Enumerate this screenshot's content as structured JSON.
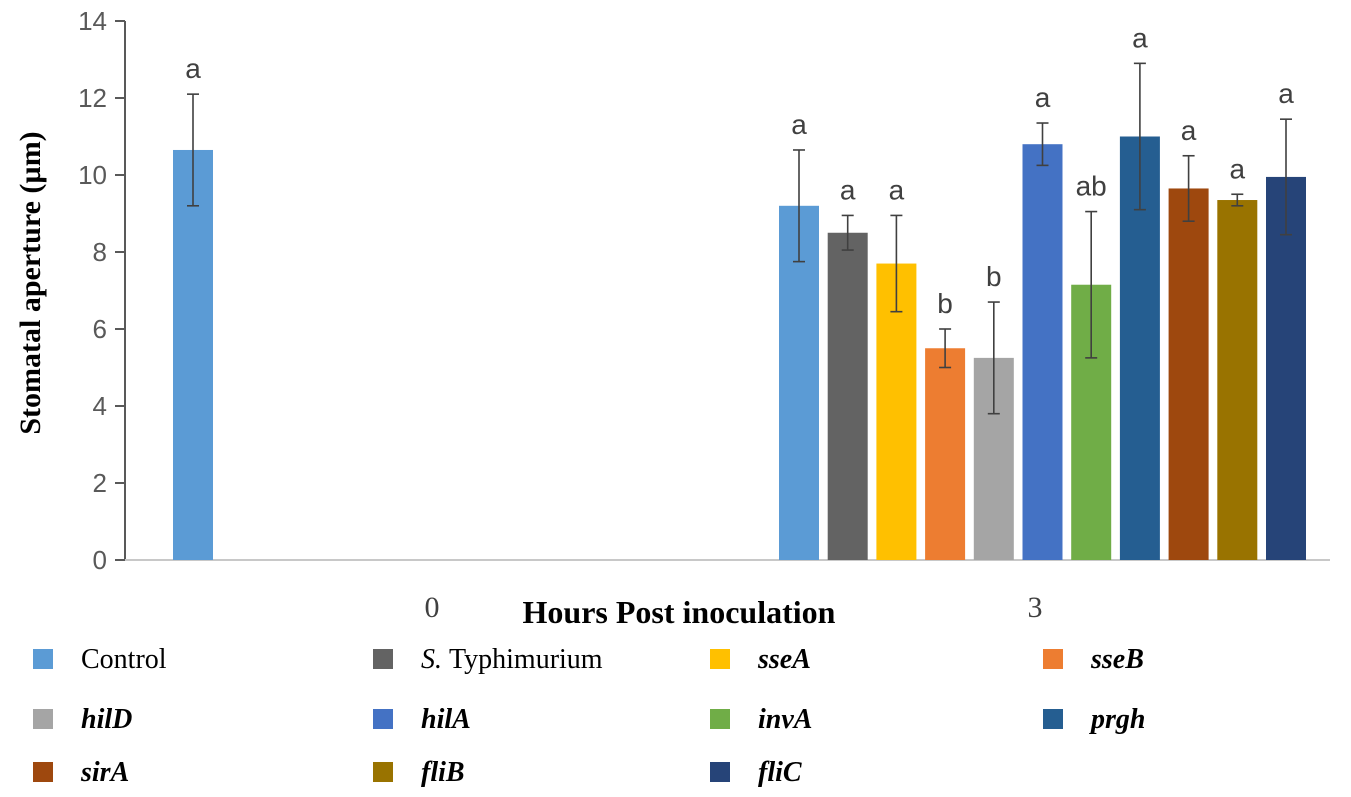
{
  "chart_data": {
    "type": "bar",
    "ylabel": "Stomatal aperture (µm)",
    "xlabel": "Hours Post inoculation",
    "ylim": [
      0,
      14
    ],
    "yticks": [
      0,
      2,
      4,
      6,
      8,
      10,
      12,
      14
    ],
    "categories": [
      "0",
      "3"
    ],
    "series": [
      {
        "name": "Control",
        "prefix": "",
        "italic": false,
        "color": "#5b9bd5",
        "values": [
          10.65,
          9.2
        ],
        "errors": [
          1.45,
          1.45
        ],
        "sig": [
          "a",
          "a"
        ]
      },
      {
        "name": "Typhimurium",
        "prefix": "S.",
        "italic": false,
        "color": "#636363",
        "values": [
          null,
          8.5
        ],
        "errors": [
          null,
          0.45
        ],
        "sig": [
          null,
          "a"
        ]
      },
      {
        "name": "sseA",
        "prefix": "",
        "italic": true,
        "color": "#ffc000",
        "values": [
          null,
          7.7
        ],
        "errors": [
          null,
          1.25
        ],
        "sig": [
          null,
          "a"
        ]
      },
      {
        "name": "sseB",
        "prefix": "",
        "italic": true,
        "color": "#ed7d31",
        "values": [
          null,
          5.5
        ],
        "errors": [
          null,
          0.5
        ],
        "sig": [
          null,
          "b"
        ]
      },
      {
        "name": "hilD",
        "prefix": "",
        "italic": true,
        "color": "#a5a5a5",
        "values": [
          null,
          5.25
        ],
        "errors": [
          null,
          1.45
        ],
        "sig": [
          null,
          "b"
        ]
      },
      {
        "name": "hilA",
        "prefix": "",
        "italic": true,
        "color": "#4472c4",
        "values": [
          null,
          10.8
        ],
        "errors": [
          null,
          0.55
        ],
        "sig": [
          null,
          "a"
        ]
      },
      {
        "name": "invA",
        "prefix": "",
        "italic": true,
        "color": "#70ad47",
        "values": [
          null,
          7.15
        ],
        "errors": [
          null,
          1.9
        ],
        "sig": [
          null,
          "ab"
        ]
      },
      {
        "name": "prgh",
        "prefix": "",
        "italic": true,
        "color": "#255e91",
        "values": [
          null,
          11.0
        ],
        "errors": [
          null,
          1.9
        ],
        "sig": [
          null,
          "a"
        ]
      },
      {
        "name": "sirA",
        "prefix": "",
        "italic": true,
        "color": "#9e480e",
        "values": [
          null,
          9.65
        ],
        "errors": [
          null,
          0.85
        ],
        "sig": [
          null,
          "a"
        ]
      },
      {
        "name": "fliB",
        "prefix": "",
        "italic": true,
        "color": "#997300",
        "values": [
          null,
          9.35
        ],
        "errors": [
          null,
          0.15
        ],
        "sig": [
          null,
          "a"
        ]
      },
      {
        "name": "fliC",
        "prefix": "",
        "italic": true,
        "color": "#264478",
        "values": [
          null,
          9.95
        ],
        "errors": [
          null,
          1.5
        ],
        "sig": [
          null,
          "a"
        ]
      }
    ]
  }
}
